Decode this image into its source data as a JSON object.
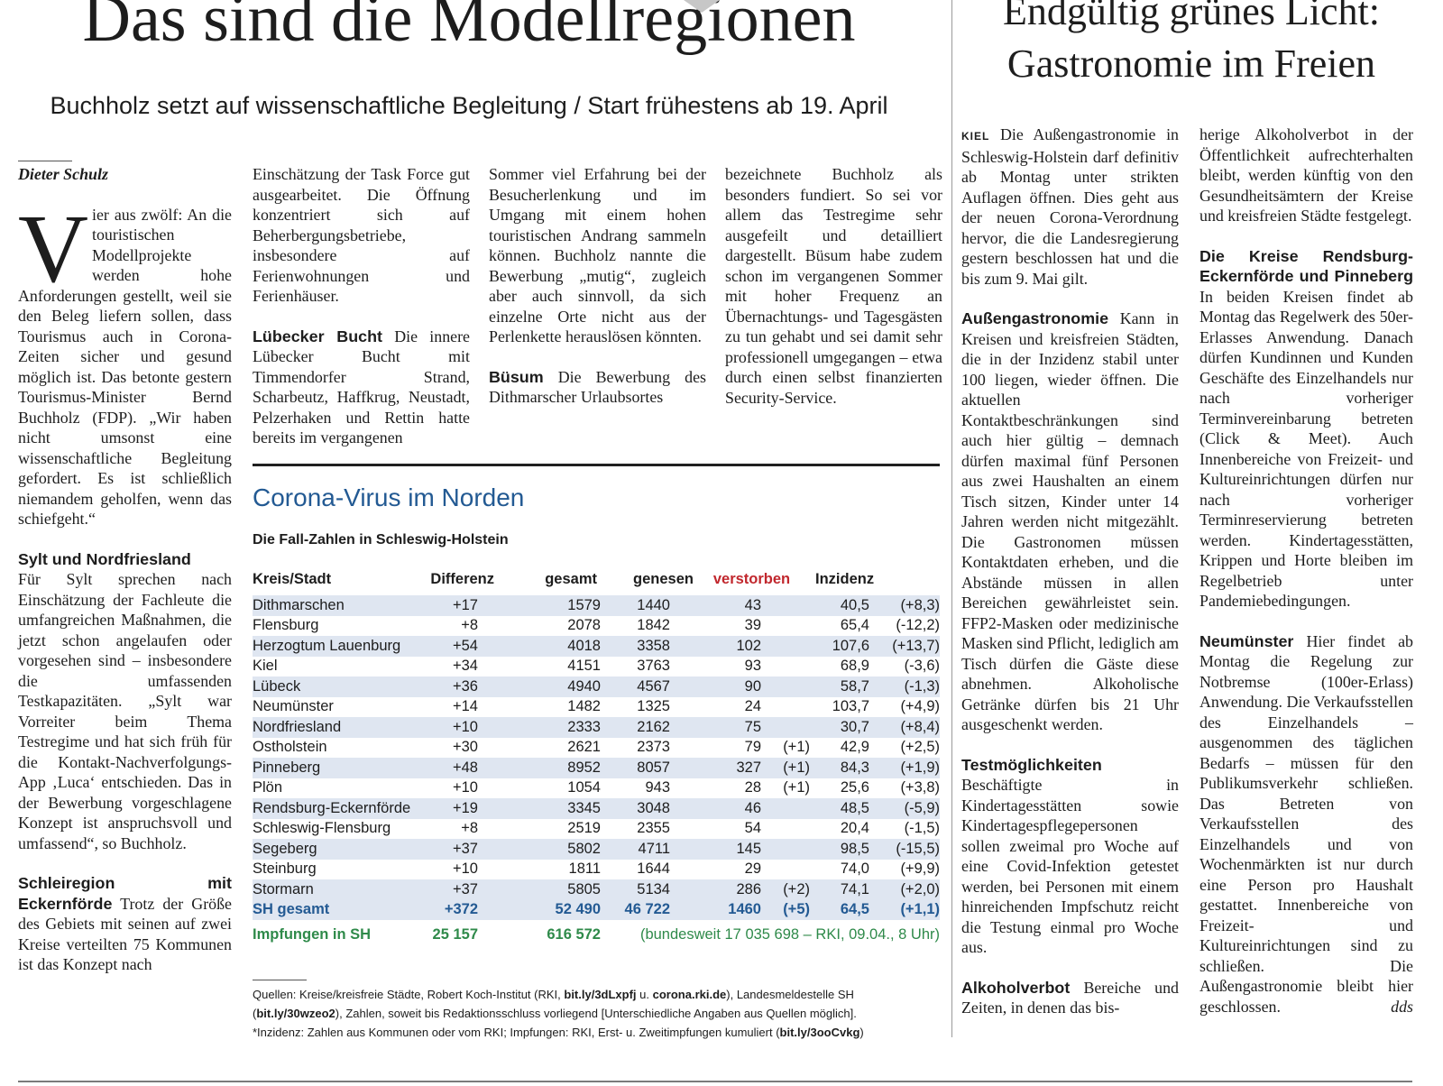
{
  "left_article": {
    "headline": "Das sind die Modellregionen",
    "subheadline": "Buchholz setzt auf wissenschaftliche Begleitung / Start frühestens ab 19. April",
    "byline": "Dieter Schulz",
    "dropcap": "V",
    "intro": "ier aus zwölf: An die touristischen Modellprojekte werden hohe Anforderungen gestellt, weil sie den Beleg liefern sollen, dass Tourismus auch in Corona-Zeiten sicher und gesund möglich ist. Das betonte gestern Tourismus-Minister Bernd Buchholz (FDP). „Wir haben nicht umsonst eine wissenschaftliche Begleitung gefordert. Es ist schließlich niemandem geholfen, wenn das schiefgeht.“",
    "sylt_head": "Sylt und Nordfriesland",
    "sylt_text": "Für Sylt sprechen nach Einschätzung der Fachleute die umfangreichen Maßnahmen, die jetzt schon angelaufen oder vorgesehen sind – insbesondere die umfassenden Testkapazitäten. „Sylt war Vorreiter beim Thema Testregime und hat sich früh für die Kontakt-Nachverfolgungs-App ‚Luca‘ entschieden. Das in der Bewerbung vorgeschlagene Konzept ist anspruchsvoll und umfassend“, so Buchholz.",
    "schlei_head": "Schleiregion mit Eckernförde",
    "schlei_text": "Trotz der Größe des Gebiets mit seinen auf zwei Kreise verteilten 75 Kommunen ist das Konzept nach",
    "col2_text": "Einschätzung der Task Force gut ausgearbeitet. Die Öffnung konzentriert sich auf Beherbergungsbetriebe, insbesondere auf Ferienwohnungen und Ferienhäuser.",
    "luebeck_head": "Lübecker Bucht",
    "luebeck_text": "Die innere Lübecker Bucht mit Timmendorfer Strand, Scharbeutz, Haffkrug, Neustadt, Pelzerhaken und Rettin hatte bereits im vergangenen",
    "col3_text": "Sommer viel Erfahrung bei der Besucherlenkung und im Umgang mit einem hohen touristischen Andrang sammeln können. Buchholz nannte die Bewerbung „mutig“, zugleich aber auch sinnvoll, da sich einzelne Orte nicht aus der Perlenkette herauslösen könnten.",
    "buesum_head": "Büsum",
    "buesum_text": "Die Bewerbung des Dithmarscher Urlaubsortes",
    "col4_text": "bezeichnete Buchholz als besonders fundiert. So sei vor allem das Testregime sehr ausgefeilt und detailliert dargestellt. Büsum habe zudem schon im vergangenen Sommer mit hoher Frequenz an Übernachtungs- und Tagesgästen zu tun gehabt und sei damit sehr professionell umgegangen – etwa durch einen selbst finanzierten Security-Service."
  },
  "corona_box": {
    "title": "Corona-Virus im Norden",
    "subtitle": "Die Fall-Zahlen in Schleswig-Holstein",
    "headers": [
      "Kreis/Stadt",
      "Differenz",
      "gesamt",
      "genesen",
      "verstorben",
      "Inzidenz"
    ],
    "rows": [
      [
        "Dithmarschen",
        "+17",
        "1579",
        "1440",
        "43",
        "",
        "40,5",
        "(+8,3)"
      ],
      [
        "Flensburg",
        "+8",
        "2078",
        "1842",
        "39",
        "",
        "65,4",
        "(-12,2)"
      ],
      [
        "Herzogtum Lauenburg",
        "+54",
        "4018",
        "3358",
        "102",
        "",
        "107,6",
        "(+13,7)"
      ],
      [
        "Kiel",
        "+34",
        "4151",
        "3763",
        "93",
        "",
        "68,9",
        "(-3,6)"
      ],
      [
        "Lübeck",
        "+36",
        "4940",
        "4567",
        "90",
        "",
        "58,7",
        "(-1,3)"
      ],
      [
        "Neumünster",
        "+14",
        "1482",
        "1325",
        "24",
        "",
        "103,7",
        "(+4,9)"
      ],
      [
        "Nordfriesland",
        "+10",
        "2333",
        "2162",
        "75",
        "",
        "30,7",
        "(+8,4)"
      ],
      [
        "Ostholstein",
        "+30",
        "2621",
        "2373",
        "79",
        "(+1)",
        "42,9",
        "(+2,5)"
      ],
      [
        "Pinneberg",
        "+48",
        "8952",
        "8057",
        "327",
        "(+1)",
        "84,3",
        "(+1,9)"
      ],
      [
        "Plön",
        "+10",
        "1054",
        "943",
        "28",
        "(+1)",
        "25,6",
        "(+3,8)"
      ],
      [
        "Rendsburg-Eckernförde",
        "+19",
        "3345",
        "3048",
        "46",
        "",
        "48,5",
        "(-5,9)"
      ],
      [
        "Schleswig-Flensburg",
        "+8",
        "2519",
        "2355",
        "54",
        "",
        "20,4",
        "(-1,5)"
      ],
      [
        "Segeberg",
        "+37",
        "5802",
        "4711",
        "145",
        "",
        "98,5",
        "(-15,5)"
      ],
      [
        "Steinburg",
        "+10",
        "1811",
        "1644",
        "29",
        "",
        "74,0",
        "(+9,9)"
      ],
      [
        "Stormarn",
        "+37",
        "5805",
        "5134",
        "286",
        "(+2)",
        "74,1",
        "(+2,0)"
      ]
    ],
    "total": [
      "SH gesamt",
      "+372",
      "52 490",
      "46 722",
      "1460",
      "(+5)",
      "64,5",
      "(+1,1)"
    ],
    "vacc_label": "Impfungen in SH",
    "vacc_first": "25 157",
    "vacc_total": "616 572",
    "vacc_note": "(bundesweit 17 035 698 – RKI, 09.04., 8 Uhr)",
    "src_1": "Quellen: Kreise/kreisfreie Städte, Robert Koch-Institut (RKI, ",
    "src_link1": "bit.ly/3dLxpfj",
    "src_2": " u. ",
    "src_link2": "corona.rki.de",
    "src_3": "), Landesmeldestelle SH (",
    "src_link3": "bit.ly/30wzeo2",
    "src_4": "), Zahlen, soweit bis Redaktionsschluss vorliegend [Unterschiedliche Angaben aus Quellen möglich].",
    "note_1": "*Inzidenz: Zahlen aus Kommunen oder vom RKI; Impfungen: RKI, Erst- u. Zweitimpfungen kumuliert (",
    "note_link": "bit.ly/3ooCvkg",
    "note_2": ")",
    "colors": {
      "title": "#235a93",
      "band": "#dfe6f1",
      "deaths_header": "#c1272d",
      "vaccinations": "#2f8a4a"
    }
  },
  "right_article": {
    "headline": "Endgültig grünes Licht: Gastronomie im Freien",
    "dateline": "KIEL",
    "lead": "Die Außengastronomie in Schleswig-Holstein darf definitiv ab Montag unter strikten Auflagen öffnen. Dies geht aus der neuen Corona-Verordnung hervor, die die Landesregierung gestern beschlossen hat und die bis zum 9. Mai gilt.",
    "aussen_head": "Außengastronomie",
    "aussen_text": "Kann in Kreisen und kreisfreien Städten, die in der Inzidenz stabil unter 100 liegen, wieder öffnen. Die aktuellen Kontaktbeschränkungen sind auch hier gültig – demnach dürfen maximal fünf Personen aus zwei Haushalten an einem Tisch sitzen, Kinder unter 14 Jahren werden nicht mitgezählt. Die Gastronomen müssen Kontaktdaten erheben, und die Abstände müssen in allen Bereichen gewährleistet sein. FFP2-Masken oder medizinische Masken sind Pflicht, lediglich am Tisch dürfen die Gäste diese abnehmen. Alkoholische Getränke dürfen bis 21 Uhr ausgeschenkt werden.",
    "test_head": "Testmöglichkeiten",
    "test_text": "Beschäftigte in Kindertagesstätten sowie Kindertagespflegepersonen sollen zweimal pro Woche auf eine Covid-Infektion getestet werden, bei Personen mit einem hinreichenden Impfschutz reicht die Testung einmal pro Woche aus.",
    "alk_head": "Alkoholverbot",
    "alk_text": "Bereiche und Zeiten, in denen das bis-",
    "col2_text": "herige Alkoholverbot in der Öffentlichkeit aufrechterhalten bleibt, werden künftig von den Gesundheitsämtern der Kreise und kreisfreien Städte festgelegt.",
    "kreise_head": "Die Kreise Rendsburg-Eckernförde und Pinneberg",
    "kreise_text": "In beiden Kreisen findet ab Montag das Regelwerk des 50er-Erlasses Anwendung. Danach dürfen Kundinnen und Kunden Geschäfte des Einzelhandels nur nach vorheriger Terminvereinbarung betreten (Click & Meet). Auch Innenbereiche von Freizeit- und Kultureinrichtungen dürfen nur nach vorheriger Terminreservierung betreten werden. Kindertagesstätten, Krippen und Horte bleiben im Regelbetrieb unter Pandemiebedingungen.",
    "nms_head": "Neumünster",
    "nms_text": "Hier findet ab Montag die Regelung zur Notbremse (100er-Erlass) Anwendung. Die Verkaufsstellen des Einzelhandels – ausgenommen des täglichen Bedarfs – müssen für den Publikumsverkehr schließen. Das Betreten von Verkaufsstellen des Einzelhandels und von Wochenmärkten ist nur durch eine Person pro Haushalt gestattet. Innenbereiche von Freizeit- und Kultureinrichtungen sind zu schließen. Die Außengastronomie bleibt hier geschlossen.",
    "signature": "dds"
  }
}
